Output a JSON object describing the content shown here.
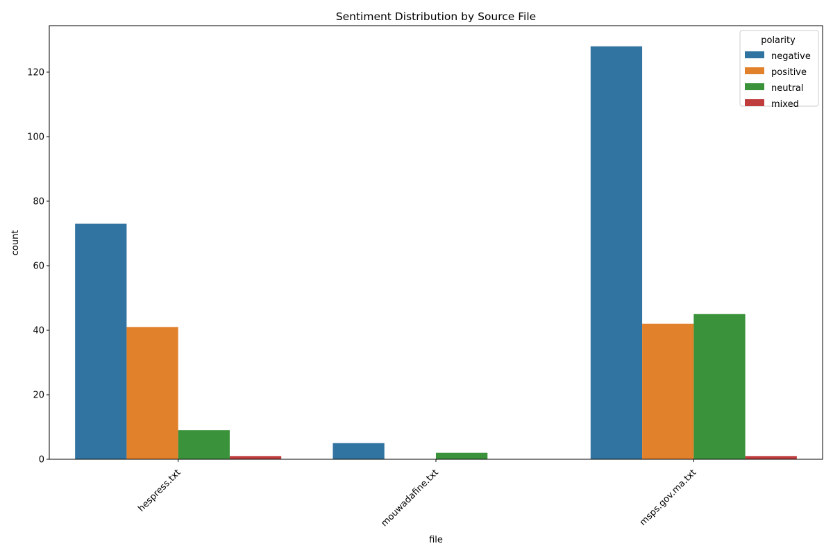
{
  "chart_data": {
    "type": "bar",
    "title": "Sentiment Distribution by Source File",
    "xlabel": "file",
    "ylabel": "count",
    "categories": [
      "hespress.txt",
      "mouwadafine.txt",
      "msps.gov.ma.txt"
    ],
    "series": [
      {
        "name": "negative",
        "color": "#3274a1",
        "values": [
          73,
          5,
          128
        ]
      },
      {
        "name": "positive",
        "color": "#e1812c",
        "values": [
          41,
          0,
          42
        ]
      },
      {
        "name": "neutral",
        "color": "#3a923a",
        "values": [
          9,
          2,
          45
        ]
      },
      {
        "name": "mixed",
        "color": "#c03d3e",
        "values": [
          1,
          0,
          1
        ]
      }
    ],
    "ylim": [
      0,
      134.4
    ],
    "yticks": [
      0,
      20,
      40,
      60,
      80,
      100,
      120
    ],
    "legend": {
      "title": "polarity",
      "placement": "top-right"
    },
    "grid": false
  }
}
